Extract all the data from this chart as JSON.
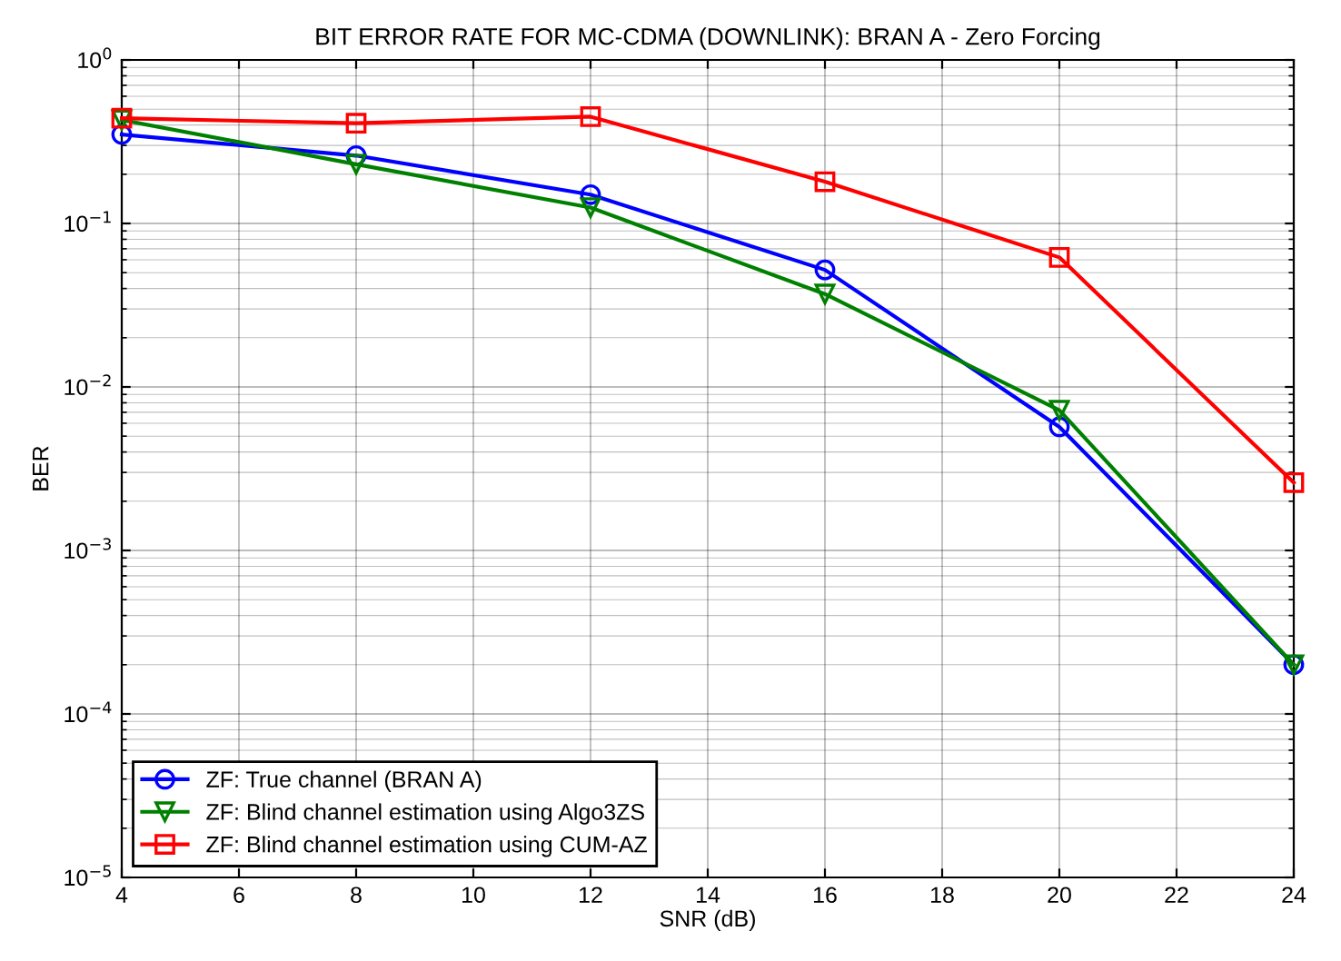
{
  "chart_data": {
    "type": "line",
    "title": "BIT ERROR RATE FOR MC-CDMA (DOWNLINK): BRAN A - Zero Forcing",
    "xlabel": "SNR (dB)",
    "ylabel": "BER",
    "log": "y",
    "grid": true,
    "legend": "bottom left",
    "x": [
      4,
      8,
      12,
      16,
      20,
      24
    ],
    "xlim": [
      4,
      24
    ],
    "xticks": [
      4,
      6,
      8,
      10,
      12,
      14,
      16,
      18,
      20,
      22,
      24
    ],
    "ylim": [
      1e-05,
      1
    ],
    "yticks": [
      {
        "value": 1e-05,
        "label": "10$^{−5}$"
      },
      {
        "value": 0.0001,
        "label": "10$^{−4}$"
      },
      {
        "value": 0.001,
        "label": "10$^{−3}$"
      },
      {
        "value": 0.01,
        "label": "10$^{−2}$"
      },
      {
        "value": 0.1,
        "label": "10$^{−1}$"
      },
      {
        "value": 1,
        "label": "10$^{0}$"
      }
    ],
    "series": [
      {
        "name": "ZF: True channel (BRAN A)",
        "color": "#0000ff",
        "marker": "circle",
        "values": [
          0.35,
          0.26,
          0.15,
          0.052,
          0.0057,
          0.0002
        ]
      },
      {
        "name": "ZF: Blind channel estimation using Algo3ZS",
        "color": "#008000",
        "marker": "triangle",
        "values": [
          0.43,
          0.23,
          0.125,
          0.037,
          0.0072,
          0.0002
        ]
      },
      {
        "name": "ZF: Blind channel estimation using CUM-AZ",
        "color": "#ff0000",
        "marker": "square",
        "values": [
          0.44,
          0.41,
          0.45,
          0.18,
          0.062,
          0.0026
        ]
      }
    ]
  }
}
